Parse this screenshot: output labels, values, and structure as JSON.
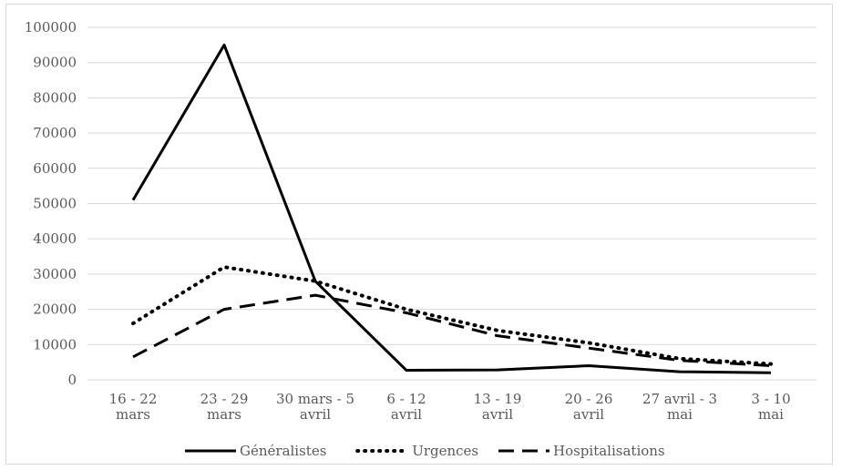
{
  "chart_data": {
    "type": "line",
    "title": "",
    "xlabel": "",
    "ylabel": "",
    "ylim": [
      0,
      100000
    ],
    "yticks": [
      0,
      10000,
      20000,
      30000,
      40000,
      50000,
      60000,
      70000,
      80000,
      90000,
      100000
    ],
    "ytick_labels": [
      "0",
      "10000",
      "20000",
      "30000",
      "40000",
      "50000",
      "60000",
      "70000",
      "80000",
      "90000",
      "100000"
    ],
    "grid": "horizontal",
    "legend_position": "bottom",
    "categories": [
      [
        "16 - 22",
        "mars"
      ],
      [
        "23 - 29",
        "mars"
      ],
      [
        "30 mars - 5",
        "avril"
      ],
      [
        "6 - 12",
        "avril"
      ],
      [
        "13 - 19",
        "avril"
      ],
      [
        "20 - 26",
        "avril"
      ],
      [
        "27 avril - 3",
        "mai"
      ],
      [
        "3 - 10",
        "mai"
      ]
    ],
    "series": [
      {
        "name": "Généralistes",
        "style": "solid",
        "color": "#000000",
        "values": [
          51000,
          95000,
          28000,
          2700,
          2800,
          4000,
          2300,
          2000
        ]
      },
      {
        "name": "Urgences",
        "style": "dotted",
        "color": "#000000",
        "values": [
          16000,
          32000,
          28000,
          20000,
          14000,
          10500,
          6000,
          4500
        ]
      },
      {
        "name": "Hospitalisations",
        "style": "dashed",
        "color": "#000000",
        "values": [
          6500,
          20000,
          24000,
          19000,
          12500,
          9000,
          5500,
          4000
        ]
      }
    ]
  }
}
